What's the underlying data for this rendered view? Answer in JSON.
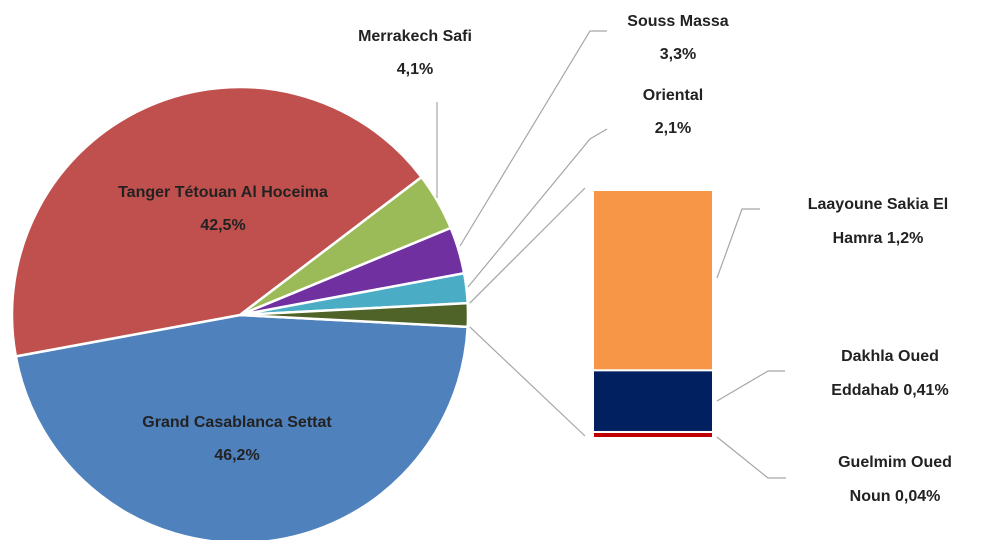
{
  "chart_data": {
    "type": "bar-of-pie",
    "categories": [
      "Grand Casablanca Settat",
      "Tanger Tétouan Al Hoceima",
      "Merrakech Safi",
      "Souss Massa",
      "Oriental",
      "Laayoune Sakia El Hamra",
      "Dakhla Oued Eddahab",
      "Guelmim Oued Noun"
    ],
    "values": [
      46.2,
      42.5,
      4.1,
      3.3,
      2.1,
      1.2,
      0.41,
      0.04
    ],
    "value_labels": [
      "46,2%",
      "42,5%",
      "4,1%",
      "3,3%",
      "2,1%",
      "1,2%",
      "0,41%",
      "0,04%"
    ],
    "colors": [
      "#4f81bd",
      "#c0504d",
      "#9bbb59",
      "#7030a0",
      "#4bacc6",
      "#f79646",
      "#002060",
      "#c00000"
    ],
    "secondary_count": 3
  }
}
